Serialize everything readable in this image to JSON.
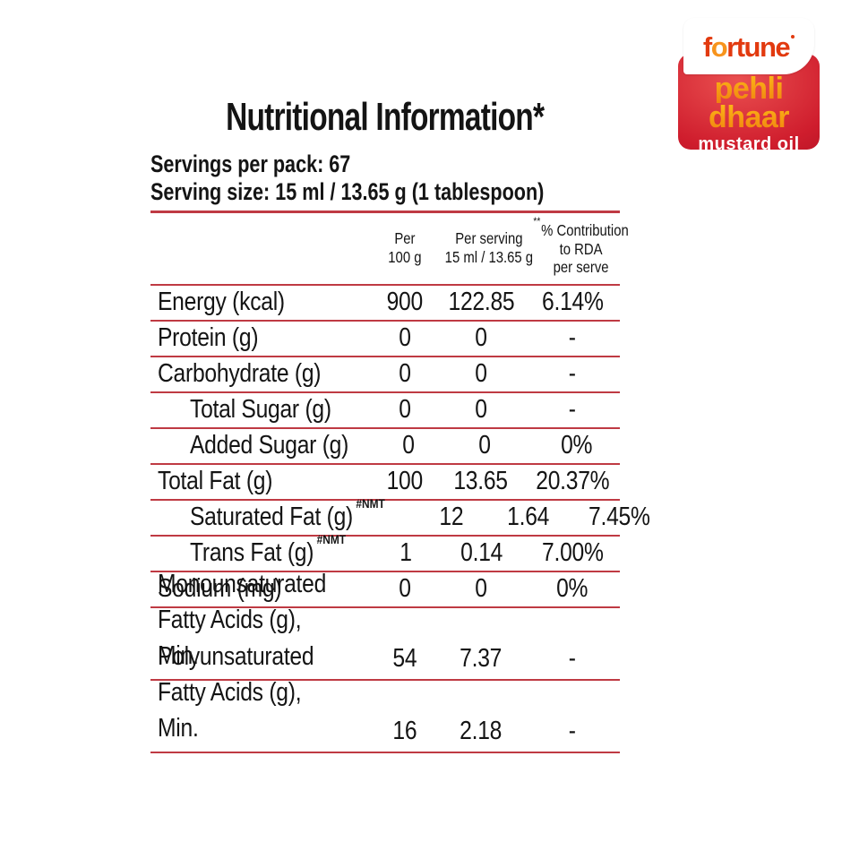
{
  "logo": {
    "brand_prefix": "f",
    "brand_o": "o",
    "brand_suffix": "rtune",
    "line1": "pehli",
    "line2": "dhaar",
    "subtitle": "mustard oil",
    "colors": {
      "brand_red": "#e23a0f",
      "brand_orange": "#f7941d",
      "block_red": "#cf1d2d",
      "text_yellow": "#fcb817"
    }
  },
  "header": {
    "title": "Nutritional Information*",
    "servings_per_pack": "Servings per pack: 67",
    "serving_size": "Serving size: 15 ml / 13.65 g (1 tablespoon)"
  },
  "table": {
    "line_color": "#bf3a43",
    "columns": {
      "per100_line1": "Per",
      "per100_line2": "100 g",
      "serving_line1": "Per serving",
      "serving_line2": "15 ml / 13.65 g",
      "rda_sup": "**",
      "rda_line1": "% Contribution",
      "rda_line2": "to RDA",
      "rda_line3": "per serve"
    },
    "rows": [
      {
        "label": "Energy (kcal)",
        "indent": false,
        "per_100g": "900",
        "per_serving": "122.85",
        "rda": "6.14%"
      },
      {
        "label": "Protein (g)",
        "indent": false,
        "per_100g": "0",
        "per_serving": "0",
        "rda": "-"
      },
      {
        "label": "Carbohydrate (g)",
        "indent": false,
        "per_100g": "0",
        "per_serving": "0",
        "rda": "-"
      },
      {
        "label": "Total Sugar (g)",
        "indent": true,
        "per_100g": "0",
        "per_serving": "0",
        "rda": "-"
      },
      {
        "label": "Added Sugar (g)",
        "indent": true,
        "per_100g": "0",
        "per_serving": "0",
        "rda": "0%"
      },
      {
        "label": "Total Fat (g)",
        "indent": false,
        "per_100g": "100",
        "per_serving": "13.65",
        "rda": "20.37%"
      },
      {
        "label": "Saturated Fat (g)",
        "sup": "#NMT",
        "indent": true,
        "per_100g": "12",
        "per_serving": "1.64",
        "rda": "7.45%"
      },
      {
        "label": "Trans Fat (g)",
        "sup": "#NMT",
        "indent": true,
        "per_100g": "1",
        "per_serving": "0.14",
        "rda": "7.00%"
      },
      {
        "label": "Sodium (mg)",
        "indent": false,
        "per_100g": "0",
        "per_serving": "0",
        "rda": "0%"
      },
      {
        "label_line1": "Monounsaturated",
        "label_line2": "Fatty Acids (g), Min.",
        "indent": false,
        "per_100g": "54",
        "per_serving": "7.37",
        "rda": "-"
      },
      {
        "label_line1": "Polyunsaturated",
        "label_line2": "Fatty Acids (g), Min.",
        "indent": false,
        "per_100g": "16",
        "per_serving": "2.18",
        "rda": "-"
      }
    ]
  }
}
